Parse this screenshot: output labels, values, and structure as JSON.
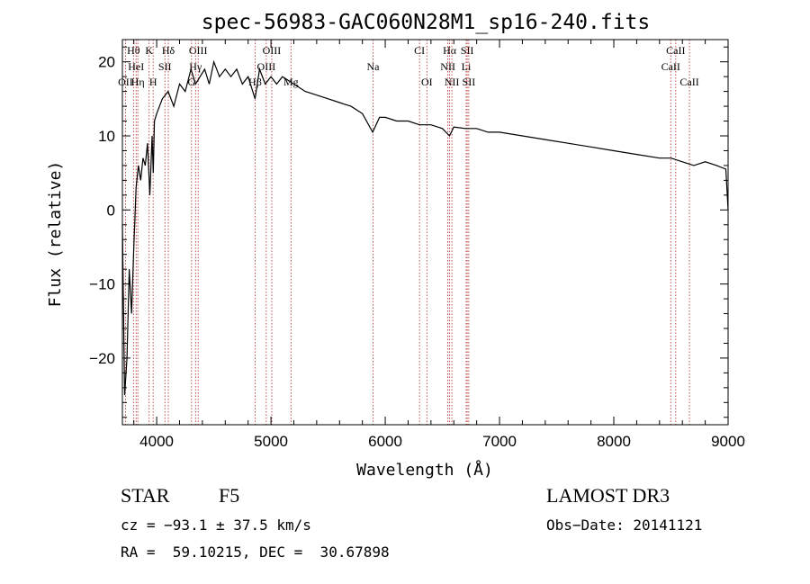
{
  "chart_data": {
    "type": "line",
    "title": "spec-56983-GAC060N28M1_sp16-240.fits",
    "xlabel": "Wavelength (Å)",
    "ylabel": "Flux (relative)",
    "xlim": [
      3700,
      9000
    ],
    "ylim": [
      -29,
      23
    ],
    "xticks": [
      4000,
      5000,
      6000,
      7000,
      8000,
      9000
    ],
    "yticks": [
      -20,
      -10,
      0,
      10,
      20
    ],
    "series": [
      {
        "name": "spectrum",
        "x": [
          3700,
          3720,
          3740,
          3760,
          3780,
          3800,
          3820,
          3840,
          3860,
          3880,
          3900,
          3920,
          3940,
          3960,
          3970,
          3980,
          4000,
          4050,
          4100,
          4150,
          4200,
          4250,
          4300,
          4340,
          4380,
          4420,
          4460,
          4500,
          4550,
          4600,
          4650,
          4700,
          4750,
          4800,
          4861,
          4900,
          4950,
          5000,
          5050,
          5100,
          5200,
          5300,
          5400,
          5500,
          5600,
          5700,
          5800,
          5890,
          5950,
          6000,
          6100,
          6200,
          6300,
          6400,
          6500,
          6563,
          6600,
          6700,
          6800,
          6900,
          7000,
          7200,
          7400,
          7600,
          7800,
          8000,
          8200,
          8400,
          8500,
          8600,
          8700,
          8800,
          8900,
          8980,
          9000
        ],
        "y": [
          -2,
          -25,
          -20,
          -8,
          -14,
          -5,
          3,
          6,
          4,
          7,
          6,
          9,
          2,
          10,
          5,
          12,
          13,
          15,
          16,
          14,
          17,
          16,
          19,
          17,
          18,
          19,
          17,
          20,
          18,
          19,
          18,
          19,
          17,
          18,
          15,
          19,
          17,
          18,
          17,
          18,
          17,
          16,
          15.5,
          15,
          14.5,
          14,
          13,
          10.5,
          12.5,
          12.5,
          12,
          12,
          11.5,
          11.5,
          11,
          10,
          11.2,
          11,
          11,
          10.5,
          10.5,
          10,
          9.5,
          9,
          8.5,
          8,
          7.5,
          7,
          7,
          6.5,
          6,
          6.5,
          6,
          5.5,
          0
        ]
      }
    ],
    "lines": [
      {
        "label": "Hθ",
        "wl": 3797,
        "row": 0
      },
      {
        "label": "K",
        "wl": 3934,
        "row": 0
      },
      {
        "label": "Hδ",
        "wl": 4102,
        "row": 0
      },
      {
        "label": "OIII",
        "wl": 4363,
        "row": 0
      },
      {
        "label": "OIII",
        "wl": 5007,
        "row": 0
      },
      {
        "label": "CI",
        "wl": 6300,
        "row": 0
      },
      {
        "label": "Hα",
        "wl": 6563,
        "row": 0
      },
      {
        "label": "SII",
        "wl": 6717,
        "row": 0
      },
      {
        "label": "CaII",
        "wl": 8542,
        "row": 0
      },
      {
        "label": "HeI",
        "wl": 3820,
        "row": 1
      },
      {
        "label": "SII",
        "wl": 4072,
        "row": 1
      },
      {
        "label": "Hγ",
        "wl": 4340,
        "row": 1
      },
      {
        "label": "OIII",
        "wl": 4959,
        "row": 1
      },
      {
        "label": "Na",
        "wl": 5893,
        "row": 1
      },
      {
        "label": "NII",
        "wl": 6548,
        "row": 1
      },
      {
        "label": "Li",
        "wl": 6708,
        "row": 1
      },
      {
        "label": "CaII",
        "wl": 8498,
        "row": 1
      },
      {
        "label": "OII",
        "wl": 3727,
        "row": 2
      },
      {
        "label": "Hη",
        "wl": 3835,
        "row": 2
      },
      {
        "label": "H",
        "wl": 3969,
        "row": 2
      },
      {
        "label": "G",
        "wl": 4305,
        "row": 2
      },
      {
        "label": "Hβ",
        "wl": 4861,
        "row": 2
      },
      {
        "label": "Mg",
        "wl": 5175,
        "row": 2
      },
      {
        "label": "OI",
        "wl": 6364,
        "row": 2
      },
      {
        "label": "NII",
        "wl": 6583,
        "row": 2
      },
      {
        "label": "SII",
        "wl": 6731,
        "row": 2
      },
      {
        "label": "CaII",
        "wl": 8662,
        "row": 2
      }
    ]
  },
  "footer": {
    "object_class": "STAR",
    "subclass": "F5",
    "survey": "LAMOST DR3",
    "cz": "cz = −93.1 ± 37.5 km/s",
    "obs_date": "Obs−Date: 20141121",
    "coords": "RA =  59.10215, DEC =  30.67898"
  }
}
